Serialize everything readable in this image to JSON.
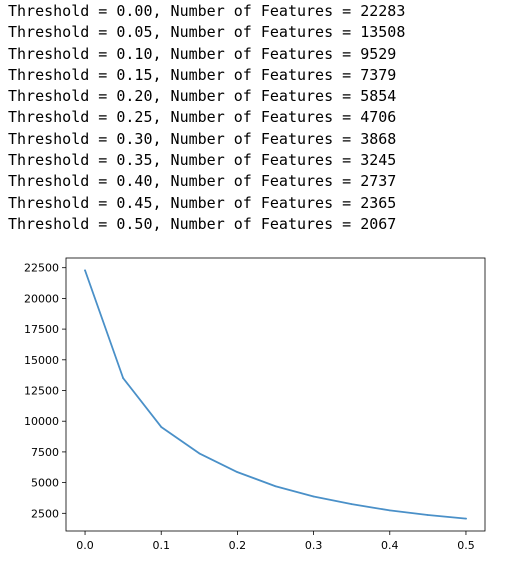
{
  "output": {
    "lines": [
      "Threshold = 0.00, Number of Features = 22283",
      "Threshold = 0.05, Number of Features = 13508",
      "Threshold = 0.10, Number of Features = 9529",
      "Threshold = 0.15, Number of Features = 7379",
      "Threshold = 0.20, Number of Features = 5854",
      "Threshold = 0.25, Number of Features = 4706",
      "Threshold = 0.30, Number of Features = 3868",
      "Threshold = 0.35, Number of Features = 3245",
      "Threshold = 0.40, Number of Features = 2737",
      "Threshold = 0.45, Number of Features = 2365",
      "Threshold = 0.50, Number of Features = 2067"
    ]
  },
  "chart_data": {
    "type": "line",
    "title": "",
    "xlabel": "",
    "ylabel": "",
    "x": [
      0.0,
      0.05,
      0.1,
      0.15,
      0.2,
      0.25,
      0.3,
      0.35,
      0.4,
      0.45,
      0.5
    ],
    "series": [
      {
        "values": [
          22283,
          13508,
          9529,
          7379,
          5854,
          4706,
          3868,
          3245,
          2737,
          2365,
          2067
        ],
        "color": "#4a90c8"
      }
    ],
    "xlim": [
      -0.025,
      0.525
    ],
    "ylim": [
      1060,
      23290
    ],
    "xticks": [
      0.0,
      0.1,
      0.2,
      0.3,
      0.4,
      0.5
    ],
    "xtick_labels": [
      "0.0",
      "0.1",
      "0.2",
      "0.3",
      "0.4",
      "0.5"
    ],
    "yticks": [
      2500,
      5000,
      7500,
      10000,
      12500,
      15000,
      17500,
      20000,
      22500
    ],
    "ytick_labels": [
      "2500",
      "5000",
      "7500",
      "10000",
      "12500",
      "15000",
      "17500",
      "20000",
      "22500"
    ],
    "grid": false,
    "legend": "none"
  }
}
